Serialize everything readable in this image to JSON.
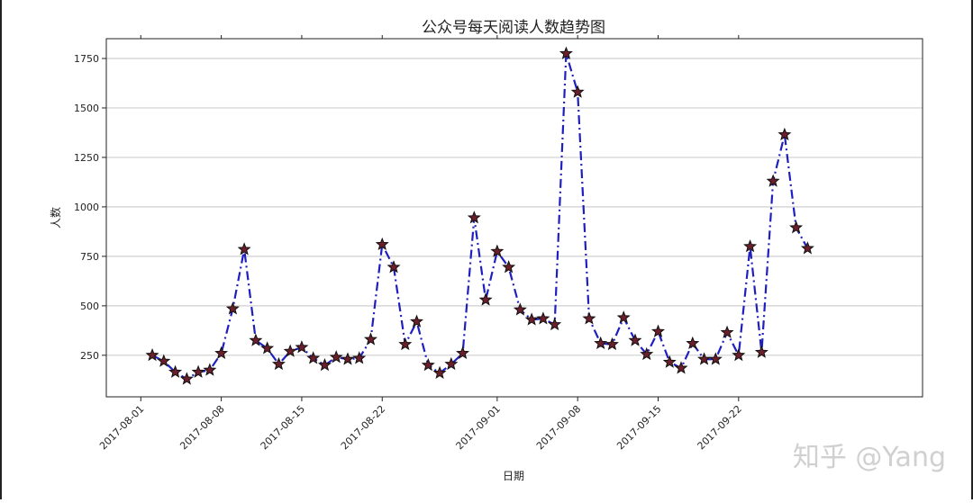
{
  "chart_data": {
    "type": "line",
    "title": "公众号每天阅读人数趋势图",
    "xlabel": "日期",
    "ylabel": "人数",
    "ylim": [
      40,
      1850
    ],
    "xlim": [
      "2017-07-29",
      "2017-10-08"
    ],
    "grid": "horizontal",
    "line_style": "dash-dot",
    "marker": "star",
    "colors": {
      "line": "#1f1fbf",
      "marker_fill": "#6b1f2a",
      "marker_edge": "#111111",
      "grid": "#cfcfcf"
    },
    "x_ticks": [
      "2017-08-01",
      "2017-08-08",
      "2017-08-15",
      "2017-08-22",
      "2017-09-01",
      "2017-09-08",
      "2017-09-15",
      "2017-09-22"
    ],
    "y_ticks": [
      250,
      500,
      750,
      1000,
      1250,
      1500,
      1750
    ],
    "series": [
      {
        "x": [
          "2017-08-02",
          "2017-08-03",
          "2017-08-04",
          "2017-08-05",
          "2017-08-06",
          "2017-08-07",
          "2017-08-08",
          "2017-08-09",
          "2017-08-10",
          "2017-08-11",
          "2017-08-12",
          "2017-08-13",
          "2017-08-14",
          "2017-08-15",
          "2017-08-16",
          "2017-08-17",
          "2017-08-18",
          "2017-08-19",
          "2017-08-20",
          "2017-08-21",
          "2017-08-22",
          "2017-08-23",
          "2017-08-24",
          "2017-08-25",
          "2017-08-26",
          "2017-08-27",
          "2017-08-28",
          "2017-08-29",
          "2017-08-30",
          "2017-08-31",
          "2017-09-01",
          "2017-09-02",
          "2017-09-03",
          "2017-09-04",
          "2017-09-05",
          "2017-09-06",
          "2017-09-07",
          "2017-09-08",
          "2017-09-09",
          "2017-09-10",
          "2017-09-11",
          "2017-09-12",
          "2017-09-13",
          "2017-09-14",
          "2017-09-15",
          "2017-09-16",
          "2017-09-17",
          "2017-09-18",
          "2017-09-19",
          "2017-09-20",
          "2017-09-21",
          "2017-09-22",
          "2017-09-23",
          "2017-09-24",
          "2017-09-25",
          "2017-09-26",
          "2017-09-27",
          "2017-09-28"
        ],
        "values": [
          250,
          220,
          165,
          130,
          165,
          175,
          260,
          485,
          785,
          325,
          285,
          205,
          270,
          290,
          235,
          200,
          240,
          230,
          235,
          330,
          810,
          695,
          305,
          420,
          200,
          160,
          205,
          260,
          945,
          530,
          775,
          695,
          480,
          430,
          435,
          405,
          1775,
          1580,
          435,
          310,
          305,
          440,
          325,
          255,
          370,
          215,
          185,
          310,
          230,
          230,
          365,
          250,
          800,
          265,
          1130,
          1365,
          895,
          790
        ]
      }
    ]
  },
  "watermark": "知乎 @Yang"
}
